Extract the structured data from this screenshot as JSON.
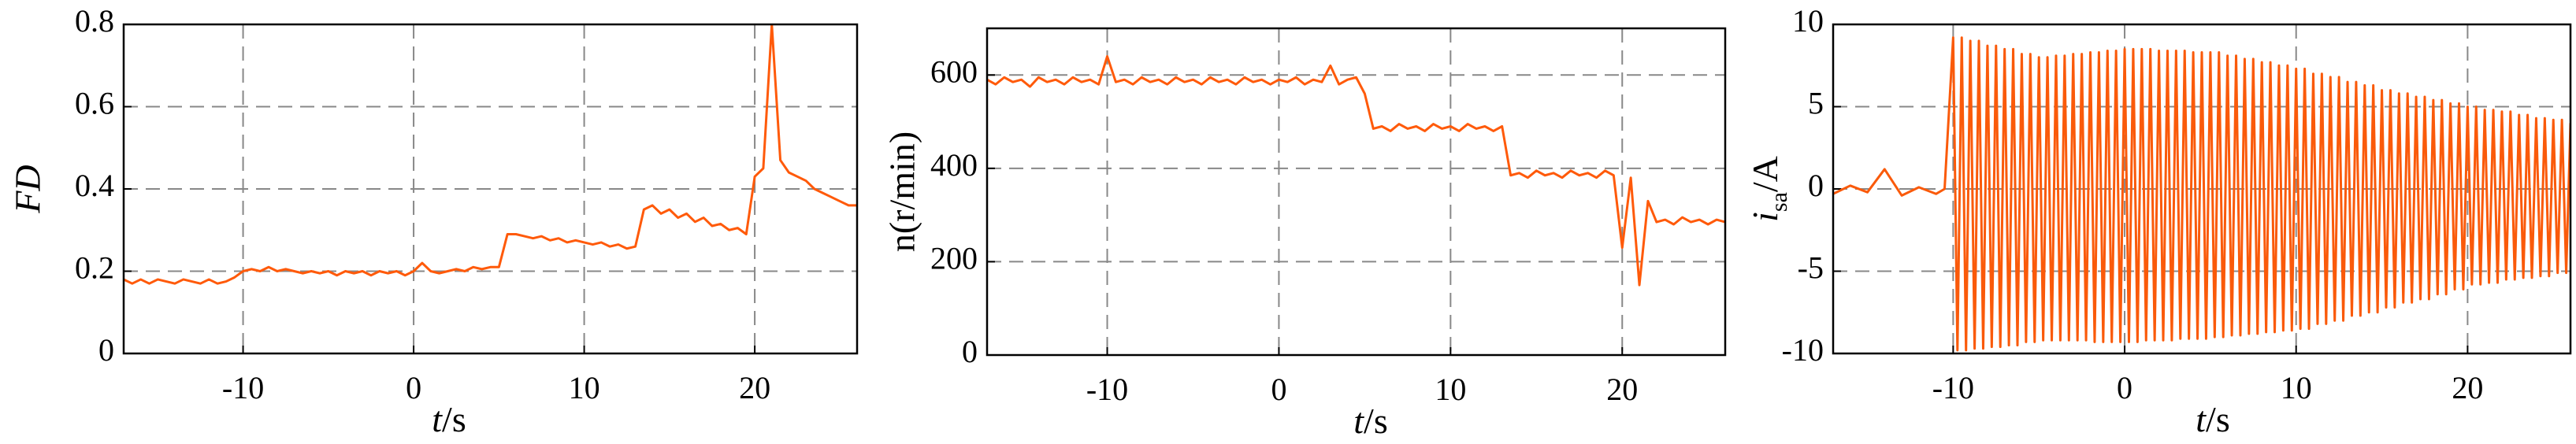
{
  "chart_data": [
    {
      "type": "line",
      "ylabel": "FD",
      "xlabel": [
        "t",
        "/s"
      ],
      "grid": true,
      "xlim": [
        -17,
        26
      ],
      "xticks": [
        -10,
        0,
        10,
        20
      ],
      "ylim": [
        0,
        0.8
      ],
      "yticks": [
        0,
        0.2,
        0.4,
        0.6,
        0.8
      ],
      "x": [
        -17,
        -16.5,
        -16,
        -15.5,
        -15,
        -14.5,
        -14,
        -13.5,
        -13,
        -12.5,
        -12,
        -11.5,
        -11,
        -10.5,
        -10,
        -9.5,
        -9,
        -8.5,
        -8,
        -7.5,
        -7,
        -6.5,
        -6,
        -5.5,
        -5,
        -4.5,
        -4,
        -3.5,
        -3,
        -2.5,
        -2,
        -1.5,
        -1,
        -0.5,
        0,
        0.5,
        1,
        1.5,
        2,
        2.5,
        3,
        3.5,
        4,
        4.5,
        5,
        5.5,
        6,
        6.5,
        7,
        7.5,
        8,
        8.5,
        9,
        9.5,
        10,
        10.5,
        11,
        11.5,
        12,
        12.5,
        13,
        13.5,
        14,
        14.5,
        15,
        15.5,
        16,
        16.5,
        17,
        17.5,
        18,
        18.5,
        19,
        19.5,
        20,
        20.5,
        21,
        21.5,
        22,
        22.5,
        23,
        23.5,
        24,
        24.5,
        25,
        25.5,
        26
      ],
      "series": [
        {
          "color": "#ff5a0a",
          "values": [
            0.18,
            0.17,
            0.18,
            0.17,
            0.18,
            0.175,
            0.17,
            0.18,
            0.175,
            0.17,
            0.18,
            0.17,
            0.175,
            0.185,
            0.2,
            0.205,
            0.2,
            0.21,
            0.2,
            0.205,
            0.2,
            0.195,
            0.2,
            0.195,
            0.2,
            0.19,
            0.2,
            0.195,
            0.2,
            0.19,
            0.2,
            0.195,
            0.2,
            0.19,
            0.2,
            0.22,
            0.2,
            0.195,
            0.2,
            0.205,
            0.2,
            0.21,
            0.205,
            0.21,
            0.21,
            0.29,
            0.29,
            0.285,
            0.28,
            0.285,
            0.275,
            0.28,
            0.27,
            0.275,
            0.27,
            0.265,
            0.27,
            0.26,
            0.265,
            0.255,
            0.26,
            0.35,
            0.36,
            0.34,
            0.35,
            0.33,
            0.34,
            0.32,
            0.33,
            0.31,
            0.315,
            0.3,
            0.305,
            0.29,
            0.43,
            0.45,
            0.8,
            0.47,
            0.44,
            0.43,
            0.42,
            0.4,
            0.39,
            0.38,
            0.37,
            0.36,
            0.36
          ]
        }
      ]
    },
    {
      "type": "line",
      "ylabel": "n(r/min)",
      "xlabel": [
        "t",
        "/s"
      ],
      "grid": true,
      "xlim": [
        -17,
        26
      ],
      "xticks": [
        -10,
        0,
        10,
        20
      ],
      "ylim": [
        0,
        700
      ],
      "yticks": [
        0,
        200,
        400,
        600
      ],
      "x": [
        -17,
        -16.5,
        -16,
        -15.5,
        -15,
        -14.5,
        -14,
        -13.5,
        -13,
        -12.5,
        -12,
        -11.5,
        -11,
        -10.5,
        -10,
        -9.5,
        -9,
        -8.5,
        -8,
        -7.5,
        -7,
        -6.5,
        -6,
        -5.5,
        -5,
        -4.5,
        -4,
        -3.5,
        -3,
        -2.5,
        -2,
        -1.5,
        -1,
        -0.5,
        0,
        0.5,
        1,
        1.5,
        2,
        2.5,
        3,
        3.5,
        4,
        4.5,
        5,
        5.5,
        6,
        6.5,
        7,
        7.5,
        8,
        8.5,
        9,
        9.5,
        10,
        10.5,
        11,
        11.5,
        12,
        12.5,
        13,
        13.5,
        14,
        14.5,
        15,
        15.5,
        16,
        16.5,
        17,
        17.5,
        18,
        18.5,
        19,
        19.5,
        20,
        20.5,
        21,
        21.5,
        22,
        22.5,
        23,
        23.5,
        24,
        24.5,
        25,
        25.5,
        26
      ],
      "series": [
        {
          "color": "#ff5a0a",
          "values": [
            590,
            580,
            595,
            585,
            590,
            575,
            595,
            585,
            590,
            580,
            595,
            585,
            590,
            580,
            640,
            585,
            590,
            580,
            595,
            585,
            590,
            580,
            595,
            585,
            590,
            580,
            595,
            585,
            590,
            580,
            595,
            585,
            590,
            580,
            590,
            585,
            595,
            580,
            590,
            585,
            620,
            580,
            590,
            595,
            560,
            485,
            490,
            480,
            495,
            485,
            490,
            480,
            495,
            485,
            490,
            480,
            495,
            485,
            490,
            480,
            490,
            385,
            390,
            380,
            395,
            385,
            390,
            380,
            395,
            385,
            390,
            380,
            395,
            385,
            230,
            380,
            150,
            330,
            285,
            290,
            280,
            295,
            285,
            290,
            280,
            290,
            285
          ]
        }
      ]
    },
    {
      "type": "line",
      "ylabel": [
        "i",
        "sa",
        "/A"
      ],
      "xlabel": [
        "t",
        "/s"
      ],
      "grid": true,
      "xlim": [
        -17,
        26
      ],
      "xticks": [
        -10,
        0,
        10,
        20
      ],
      "ylim": [
        -10,
        10
      ],
      "yticks": [
        -10,
        -5,
        0,
        5,
        10
      ],
      "x": [
        -17,
        -16,
        -15,
        -14,
        -13,
        -12,
        -11,
        -10.5,
        -10,
        -9.75,
        -9.5,
        -9.25,
        -9,
        -8.75,
        -8.5,
        -8.25,
        -8,
        -7.75,
        -7.5,
        -7.25,
        -7,
        -6.75,
        -6.5,
        -6.25,
        -6,
        -5.75,
        -5.5,
        -5.25,
        -5,
        -4.75,
        -4.5,
        -4.25,
        -4,
        -3.75,
        -3.5,
        -3.25,
        -3,
        -2.75,
        -2.5,
        -2.25,
        -2,
        -1.75,
        -1.5,
        -1.25,
        -1,
        -0.75,
        -0.5,
        -0.25,
        0,
        0.25,
        0.5,
        0.75,
        1,
        1.25,
        1.5,
        1.75,
        2,
        2.25,
        2.5,
        2.75,
        3,
        3.25,
        3.5,
        3.75,
        4,
        4.25,
        4.5,
        4.75,
        5,
        5.25,
        5.5,
        5.75,
        6,
        6.25,
        6.5,
        6.75,
        7,
        7.25,
        7.5,
        7.75,
        8,
        8.25,
        8.5,
        8.75,
        9,
        9.25,
        9.5,
        9.75,
        10,
        10.25,
        10.5,
        10.75,
        11,
        11.25,
        11.5,
        11.75,
        12,
        12.25,
        12.5,
        12.75,
        13,
        13.25,
        13.5,
        13.75,
        14,
        14.25,
        14.5,
        14.75,
        15,
        15.25,
        15.5,
        15.75,
        16,
        16.25,
        16.5,
        16.75,
        17,
        17.25,
        17.5,
        17.75,
        18,
        18.25,
        18.5,
        18.75,
        19,
        19.25,
        19.5,
        19.75,
        20,
        20.25,
        20.5,
        20.75,
        21,
        21.25,
        21.5,
        21.75,
        22,
        22.25,
        22.5,
        22.75,
        23,
        23.25,
        23.5,
        23.75,
        24,
        24.25,
        24.5,
        24.75,
        25,
        25.25,
        25.5,
        25.75,
        26
      ],
      "series": [
        {
          "color": "#fa5a0a",
          "values": [
            -0.3,
            0.2,
            -0.2,
            1.2,
            -0.4,
            0.1,
            -0.3,
            0,
            9.2,
            -9.8,
            9.2,
            -9.8,
            9,
            -9.7,
            9,
            -9.7,
            8.7,
            -9.6,
            8.7,
            -9.6,
            8.5,
            -9.5,
            8.5,
            -9.5,
            8.2,
            -9.3,
            8.2,
            -9.3,
            8,
            -9.2,
            8,
            -9.2,
            8.1,
            -9.2,
            8.1,
            -9.2,
            8.2,
            -9.2,
            8.2,
            -9.2,
            8.3,
            -9.3,
            8.3,
            -9.3,
            8.4,
            -9.3,
            8.4,
            -9.3,
            8.5,
            -9.3,
            8.5,
            -9.3,
            8.5,
            -9.2,
            8.5,
            -9.2,
            8.4,
            -9.2,
            8.4,
            -9.2,
            8.4,
            -9.1,
            8.4,
            -9.1,
            8.3,
            -9.1,
            8.3,
            -9.1,
            8.3,
            -9,
            8.3,
            -9,
            8.1,
            -8.9,
            8.1,
            -8.9,
            7.9,
            -8.8,
            7.9,
            -8.8,
            7.7,
            -8.7,
            7.7,
            -8.7,
            7.5,
            -8.6,
            7.5,
            -8.6,
            7.3,
            -8.5,
            7.3,
            -8.5,
            7,
            -8.2,
            7,
            -8.2,
            6.8,
            -8,
            6.8,
            -8,
            6.5,
            -7.7,
            6.5,
            -7.7,
            6.3,
            -7.5,
            6.3,
            -7.5,
            6,
            -7.2,
            6,
            -7.2,
            5.8,
            -6.9,
            5.8,
            -6.9,
            5.6,
            -6.7,
            5.6,
            -6.7,
            5.4,
            -6.4,
            5.4,
            -6.4,
            5.2,
            -6.1,
            5.2,
            -6.1,
            5,
            -5.8,
            5,
            -5.8,
            4.8,
            -5.7,
            4.8,
            -5.7,
            4.7,
            -5.5,
            4.7,
            -5.5,
            4.5,
            -5.4,
            4.5,
            -5.4,
            4.3,
            -5.3,
            4.3,
            -5.3,
            4.2,
            -5.1,
            4.2,
            -5.1,
            4
          ]
        }
      ]
    }
  ]
}
